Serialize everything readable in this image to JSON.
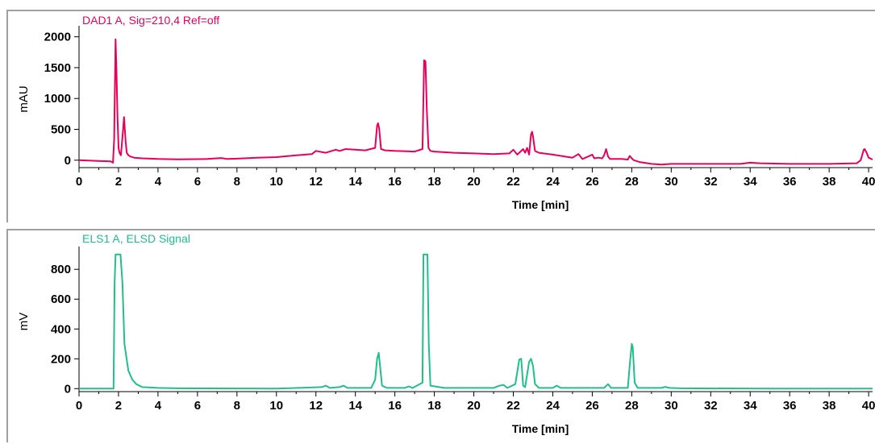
{
  "chart_data": [
    {
      "type": "line",
      "title": "DAD1 A, Sig=210,4 Ref=off",
      "xlabel": "Time [min]",
      "ylabel": "mAU",
      "xlim": [
        0,
        40.2
      ],
      "ylim": [
        -120,
        2100
      ],
      "x_ticks": [
        0,
        2,
        4,
        6,
        8,
        10,
        12,
        14,
        16,
        18,
        20,
        22,
        24,
        26,
        28,
        30,
        32,
        34,
        36,
        38,
        40
      ],
      "y_ticks": [
        0,
        500,
        1000,
        1500,
        2000
      ],
      "color": "#e8005a",
      "grid": false,
      "series": [
        {
          "x": [
            0,
            1.6,
            1.72,
            1.78,
            1.85,
            1.9,
            1.95,
            2.0,
            2.05,
            2.12,
            2.2,
            2.28,
            2.36,
            2.42,
            2.5,
            2.6,
            2.8,
            3.2,
            4.0,
            5.0,
            6.5,
            7.2,
            7.5,
            8.0,
            9.0,
            10.0,
            11.0,
            11.8,
            12.0,
            12.5,
            13.0,
            13.2,
            13.5,
            14.0,
            14.5,
            15.0,
            15.1,
            15.15,
            15.2,
            15.3,
            15.5,
            16.0,
            17.0,
            17.4,
            17.48,
            17.55,
            17.62,
            17.7,
            17.8,
            18.0,
            19.0,
            20.0,
            21.0,
            21.8,
            22.0,
            22.2,
            22.5,
            22.6,
            22.7,
            22.8,
            22.9,
            22.95,
            23.0,
            23.1,
            23.3,
            24.0,
            25.0,
            25.3,
            25.5,
            25.8,
            26.0,
            26.1,
            26.3,
            26.5,
            26.6,
            26.7,
            26.8,
            26.9,
            27.5,
            27.8,
            27.9,
            28.0,
            28.1,
            28.4,
            29.0,
            29.5,
            30.0,
            32.0,
            33.5,
            34.0,
            34.5,
            36.0,
            38.0,
            39.4,
            39.6,
            39.75,
            39.8,
            39.9,
            40.0,
            40.2
          ],
          "y": [
            0,
            -20,
            -40,
            350,
            1960,
            1400,
            700,
            200,
            120,
            80,
            380,
            700,
            300,
            120,
            80,
            60,
            40,
            30,
            20,
            15,
            20,
            35,
            20,
            25,
            40,
            50,
            80,
            100,
            150,
            120,
            170,
            150,
            180,
            170,
            160,
            200,
            560,
            600,
            520,
            180,
            160,
            150,
            140,
            180,
            1620,
            1600,
            800,
            200,
            150,
            140,
            120,
            110,
            100,
            110,
            170,
            90,
            180,
            120,
            200,
            90,
            420,
            460,
            380,
            150,
            120,
            90,
            40,
            100,
            20,
            60,
            90,
            30,
            40,
            30,
            80,
            180,
            60,
            20,
            20,
            10,
            70,
            30,
            0,
            -30,
            -60,
            -70,
            -60,
            -60,
            -60,
            -40,
            -50,
            -60,
            -60,
            -50,
            0,
            170,
            180,
            120,
            40,
            10
          ]
        }
      ]
    },
    {
      "type": "line",
      "title": "ELS1 A, ELSD Signal",
      "xlabel": "Time [min]",
      "ylabel": "mV",
      "xlim": [
        0,
        40.2
      ],
      "ylim": [
        -20,
        920
      ],
      "x_ticks": [
        0,
        2,
        4,
        6,
        8,
        10,
        12,
        14,
        16,
        18,
        20,
        22,
        24,
        26,
        28,
        30,
        32,
        34,
        36,
        38,
        40
      ],
      "y_ticks": [
        0,
        200,
        400,
        600,
        800
      ],
      "color": "#1fc08a",
      "grid": false,
      "series": [
        {
          "x": [
            0,
            1.75,
            1.8,
            1.85,
            2.0,
            2.1,
            2.2,
            2.3,
            2.5,
            2.7,
            2.9,
            3.2,
            4.0,
            5.0,
            10.0,
            12.3,
            12.5,
            12.7,
            13.2,
            13.4,
            13.6,
            14.8,
            15.0,
            15.1,
            15.18,
            15.25,
            15.35,
            15.6,
            16.5,
            16.7,
            16.9,
            17.4,
            17.45,
            17.5,
            17.65,
            17.72,
            17.8,
            18.5,
            21.0,
            21.3,
            21.5,
            21.7,
            22.1,
            22.3,
            22.4,
            22.5,
            22.6,
            22.8,
            22.9,
            23.0,
            23.1,
            23.3,
            24.0,
            24.2,
            24.4,
            26.6,
            26.8,
            26.95,
            27.8,
            27.9,
            28.0,
            28.05,
            28.15,
            28.3,
            29.5,
            29.7,
            29.9,
            30.5,
            35.0,
            40.2
          ],
          "y": [
            0,
            0,
            700,
            900,
            900,
            900,
            700,
            300,
            120,
            60,
            30,
            10,
            5,
            2,
            0,
            10,
            20,
            5,
            10,
            20,
            5,
            5,
            60,
            200,
            240,
            150,
            20,
            5,
            5,
            15,
            5,
            40,
            900,
            900,
            900,
            300,
            20,
            5,
            5,
            20,
            25,
            5,
            30,
            195,
            200,
            20,
            10,
            180,
            200,
            150,
            30,
            5,
            5,
            20,
            5,
            5,
            30,
            5,
            5,
            160,
            300,
            280,
            40,
            5,
            5,
            12,
            5,
            2,
            0,
            0
          ]
        }
      ]
    }
  ]
}
